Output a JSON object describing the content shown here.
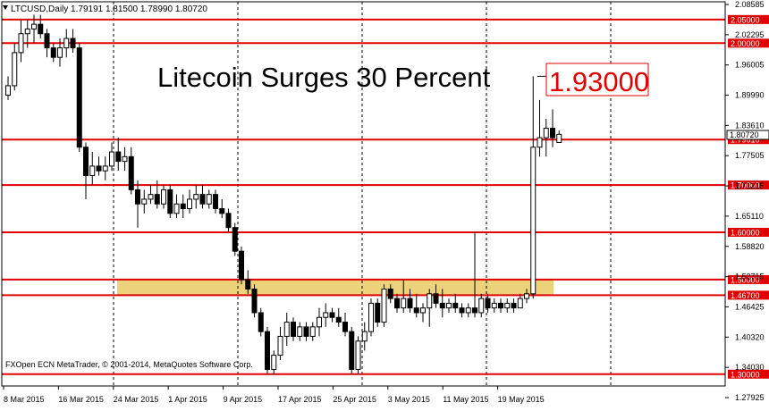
{
  "symbol_header": "LTCUSD,Daily  1.79191 1.81500 1.78990 1.80720",
  "headline": "Litecoin Surges 30 Percent",
  "callout_value": "1.93000",
  "footer_text": "FXOpen ECN MetaTrader, © 2001-2014, MetaQuotes Software Corp.",
  "current_price_label": "1.80720",
  "colors": {
    "background": "#ffffff",
    "candle_up_body": "#ffffff",
    "candle_down_body": "#000000",
    "candle_wick": "#000000",
    "level_line": "#e00000",
    "level_label_bg": "#e00000",
    "support_zone": "#ecd27a",
    "grid": "#000000",
    "callout_text": "#e00000"
  },
  "icons": {
    "symbol_dropdown": "triangle-down-icon"
  },
  "chart_data": {
    "type": "candlestick",
    "title": "",
    "xlabel": "",
    "ylabel": "",
    "ylim": [
      1.275,
      2.0875
    ],
    "grid": true,
    "y_ticks": [
      "2.08585",
      "2.02295",
      "1.96005",
      "1.89990",
      "1.83610",
      "1.77505",
      "1.71215",
      "1.65110",
      "1.58820",
      "1.52715",
      "1.46425",
      "1.40320",
      "1.34030",
      "1.27925"
    ],
    "x_ticks": [
      "8 Mar 2015",
      "16 Mar 2015",
      "24 Mar 2015",
      "1 Apr 2015",
      "9 Apr 2015",
      "17 Apr 2015",
      "25 Apr 2015",
      "3 May 2015",
      "11 May 2015",
      "19 May 2015"
    ],
    "horizontal_levels": [
      "2.05000",
      "2.00000",
      "1.79610",
      "1.70000",
      "1.60000",
      "1.50000",
      "1.46700",
      "1.30000"
    ],
    "support_zone": {
      "from": 1.467,
      "to": 1.5
    },
    "callout_level": 1.93,
    "current_price": 1.8072,
    "candles": [
      {
        "o": 1.89,
        "h": 1.93,
        "l": 1.88,
        "c": 1.91
      },
      {
        "o": 1.91,
        "h": 2.0,
        "l": 1.9,
        "c": 1.98
      },
      {
        "o": 1.98,
        "h": 2.05,
        "l": 1.96,
        "c": 2.02
      },
      {
        "o": 2.02,
        "h": 2.05,
        "l": 1.99,
        "c": 2.03
      },
      {
        "o": 2.03,
        "h": 2.06,
        "l": 2.0,
        "c": 2.04
      },
      {
        "o": 2.04,
        "h": 2.06,
        "l": 2.01,
        "c": 2.02
      },
      {
        "o": 2.02,
        "h": 2.03,
        "l": 1.97,
        "c": 1.99
      },
      {
        "o": 1.99,
        "h": 2.0,
        "l": 1.96,
        "c": 1.97
      },
      {
        "o": 1.97,
        "h": 2.01,
        "l": 1.95,
        "c": 1.99
      },
      {
        "o": 1.99,
        "h": 2.03,
        "l": 1.97,
        "c": 2.01
      },
      {
        "o": 2.01,
        "h": 2.03,
        "l": 1.98,
        "c": 1.99
      },
      {
        "o": 1.99,
        "h": 2.0,
        "l": 1.77,
        "c": 1.78
      },
      {
        "o": 1.78,
        "h": 1.79,
        "l": 1.67,
        "c": 1.72
      },
      {
        "o": 1.72,
        "h": 1.77,
        "l": 1.7,
        "c": 1.74
      },
      {
        "o": 1.74,
        "h": 1.76,
        "l": 1.72,
        "c": 1.73
      },
      {
        "o": 1.73,
        "h": 1.76,
        "l": 1.71,
        "c": 1.74
      },
      {
        "o": 1.74,
        "h": 1.79,
        "l": 1.73,
        "c": 1.77
      },
      {
        "o": 1.77,
        "h": 1.8,
        "l": 1.73,
        "c": 1.75
      },
      {
        "o": 1.75,
        "h": 1.78,
        "l": 1.73,
        "c": 1.76
      },
      {
        "o": 1.76,
        "h": 1.78,
        "l": 1.68,
        "c": 1.69
      },
      {
        "o": 1.69,
        "h": 1.71,
        "l": 1.61,
        "c": 1.66
      },
      {
        "o": 1.66,
        "h": 1.69,
        "l": 1.64,
        "c": 1.67
      },
      {
        "o": 1.67,
        "h": 1.7,
        "l": 1.66,
        "c": 1.68
      },
      {
        "o": 1.68,
        "h": 1.71,
        "l": 1.65,
        "c": 1.66
      },
      {
        "o": 1.66,
        "h": 1.7,
        "l": 1.65,
        "c": 1.69
      },
      {
        "o": 1.69,
        "h": 1.7,
        "l": 1.63,
        "c": 1.64
      },
      {
        "o": 1.64,
        "h": 1.68,
        "l": 1.63,
        "c": 1.66
      },
      {
        "o": 1.66,
        "h": 1.68,
        "l": 1.63,
        "c": 1.65
      },
      {
        "o": 1.65,
        "h": 1.69,
        "l": 1.64,
        "c": 1.67
      },
      {
        "o": 1.67,
        "h": 1.7,
        "l": 1.65,
        "c": 1.68
      },
      {
        "o": 1.68,
        "h": 1.7,
        "l": 1.65,
        "c": 1.66
      },
      {
        "o": 1.66,
        "h": 1.69,
        "l": 1.65,
        "c": 1.68
      },
      {
        "o": 1.68,
        "h": 1.69,
        "l": 1.64,
        "c": 1.65
      },
      {
        "o": 1.65,
        "h": 1.67,
        "l": 1.63,
        "c": 1.64
      },
      {
        "o": 1.64,
        "h": 1.65,
        "l": 1.6,
        "c": 1.61
      },
      {
        "o": 1.61,
        "h": 1.62,
        "l": 1.55,
        "c": 1.56
      },
      {
        "o": 1.56,
        "h": 1.57,
        "l": 1.49,
        "c": 1.5
      },
      {
        "o": 1.5,
        "h": 1.52,
        "l": 1.47,
        "c": 1.48
      },
      {
        "o": 1.48,
        "h": 1.49,
        "l": 1.42,
        "c": 1.43
      },
      {
        "o": 1.43,
        "h": 1.44,
        "l": 1.38,
        "c": 1.39
      },
      {
        "o": 1.39,
        "h": 1.4,
        "l": 1.3,
        "c": 1.31
      },
      {
        "o": 1.31,
        "h": 1.35,
        "l": 1.3,
        "c": 1.34
      },
      {
        "o": 1.34,
        "h": 1.4,
        "l": 1.33,
        "c": 1.38
      },
      {
        "o": 1.38,
        "h": 1.43,
        "l": 1.36,
        "c": 1.41
      },
      {
        "o": 1.41,
        "h": 1.42,
        "l": 1.37,
        "c": 1.38
      },
      {
        "o": 1.38,
        "h": 1.41,
        "l": 1.37,
        "c": 1.4
      },
      {
        "o": 1.4,
        "h": 1.41,
        "l": 1.37,
        "c": 1.38
      },
      {
        "o": 1.38,
        "h": 1.41,
        "l": 1.37,
        "c": 1.4
      },
      {
        "o": 1.4,
        "h": 1.44,
        "l": 1.38,
        "c": 1.42
      },
      {
        "o": 1.42,
        "h": 1.45,
        "l": 1.4,
        "c": 1.43
      },
      {
        "o": 1.43,
        "h": 1.44,
        "l": 1.41,
        "c": 1.42
      },
      {
        "o": 1.42,
        "h": 1.44,
        "l": 1.4,
        "c": 1.41
      },
      {
        "o": 1.41,
        "h": 1.43,
        "l": 1.38,
        "c": 1.39
      },
      {
        "o": 1.39,
        "h": 1.4,
        "l": 1.3,
        "c": 1.31
      },
      {
        "o": 1.31,
        "h": 1.38,
        "l": 1.3,
        "c": 1.37
      },
      {
        "o": 1.37,
        "h": 1.41,
        "l": 1.35,
        "c": 1.39
      },
      {
        "o": 1.39,
        "h": 1.46,
        "l": 1.38,
        "c": 1.45
      },
      {
        "o": 1.45,
        "h": 1.46,
        "l": 1.4,
        "c": 1.41
      },
      {
        "o": 1.41,
        "h": 1.49,
        "l": 1.4,
        "c": 1.48
      },
      {
        "o": 1.48,
        "h": 1.49,
        "l": 1.45,
        "c": 1.46
      },
      {
        "o": 1.46,
        "h": 1.47,
        "l": 1.43,
        "c": 1.44
      },
      {
        "o": 1.44,
        "h": 1.5,
        "l": 1.43,
        "c": 1.46
      },
      {
        "o": 1.46,
        "h": 1.48,
        "l": 1.43,
        "c": 1.44
      },
      {
        "o": 1.44,
        "h": 1.47,
        "l": 1.42,
        "c": 1.43
      },
      {
        "o": 1.43,
        "h": 1.45,
        "l": 1.41,
        "c": 1.44
      },
      {
        "o": 1.44,
        "h": 1.48,
        "l": 1.4,
        "c": 1.47
      },
      {
        "o": 1.47,
        "h": 1.49,
        "l": 1.44,
        "c": 1.45
      },
      {
        "o": 1.45,
        "h": 1.48,
        "l": 1.42,
        "c": 1.44
      },
      {
        "o": 1.44,
        "h": 1.46,
        "l": 1.43,
        "c": 1.45
      },
      {
        "o": 1.45,
        "h": 1.47,
        "l": 1.43,
        "c": 1.44
      },
      {
        "o": 1.44,
        "h": 1.45,
        "l": 1.42,
        "c": 1.43
      },
      {
        "o": 1.43,
        "h": 1.45,
        "l": 1.42,
        "c": 1.44
      },
      {
        "o": 1.44,
        "h": 1.6,
        "l": 1.42,
        "c": 1.43
      },
      {
        "o": 1.43,
        "h": 1.47,
        "l": 1.42,
        "c": 1.46
      },
      {
        "o": 1.46,
        "h": 1.47,
        "l": 1.43,
        "c": 1.44
      },
      {
        "o": 1.44,
        "h": 1.46,
        "l": 1.43,
        "c": 1.45
      },
      {
        "o": 1.45,
        "h": 1.46,
        "l": 1.43,
        "c": 1.44
      },
      {
        "o": 1.44,
        "h": 1.46,
        "l": 1.43,
        "c": 1.45
      },
      {
        "o": 1.45,
        "h": 1.46,
        "l": 1.43,
        "c": 1.44
      },
      {
        "o": 1.44,
        "h": 1.47,
        "l": 1.44,
        "c": 1.46
      },
      {
        "o": 1.46,
        "h": 1.48,
        "l": 1.45,
        "c": 1.47
      },
      {
        "o": 1.47,
        "h": 1.93,
        "l": 1.46,
        "c": 1.78
      },
      {
        "o": 1.78,
        "h": 1.88,
        "l": 1.76,
        "c": 1.8
      },
      {
        "o": 1.8,
        "h": 1.84,
        "l": 1.76,
        "c": 1.82
      },
      {
        "o": 1.82,
        "h": 1.86,
        "l": 1.78,
        "c": 1.8
      },
      {
        "o": 1.79,
        "h": 1.815,
        "l": 1.79,
        "c": 1.8072
      }
    ]
  }
}
